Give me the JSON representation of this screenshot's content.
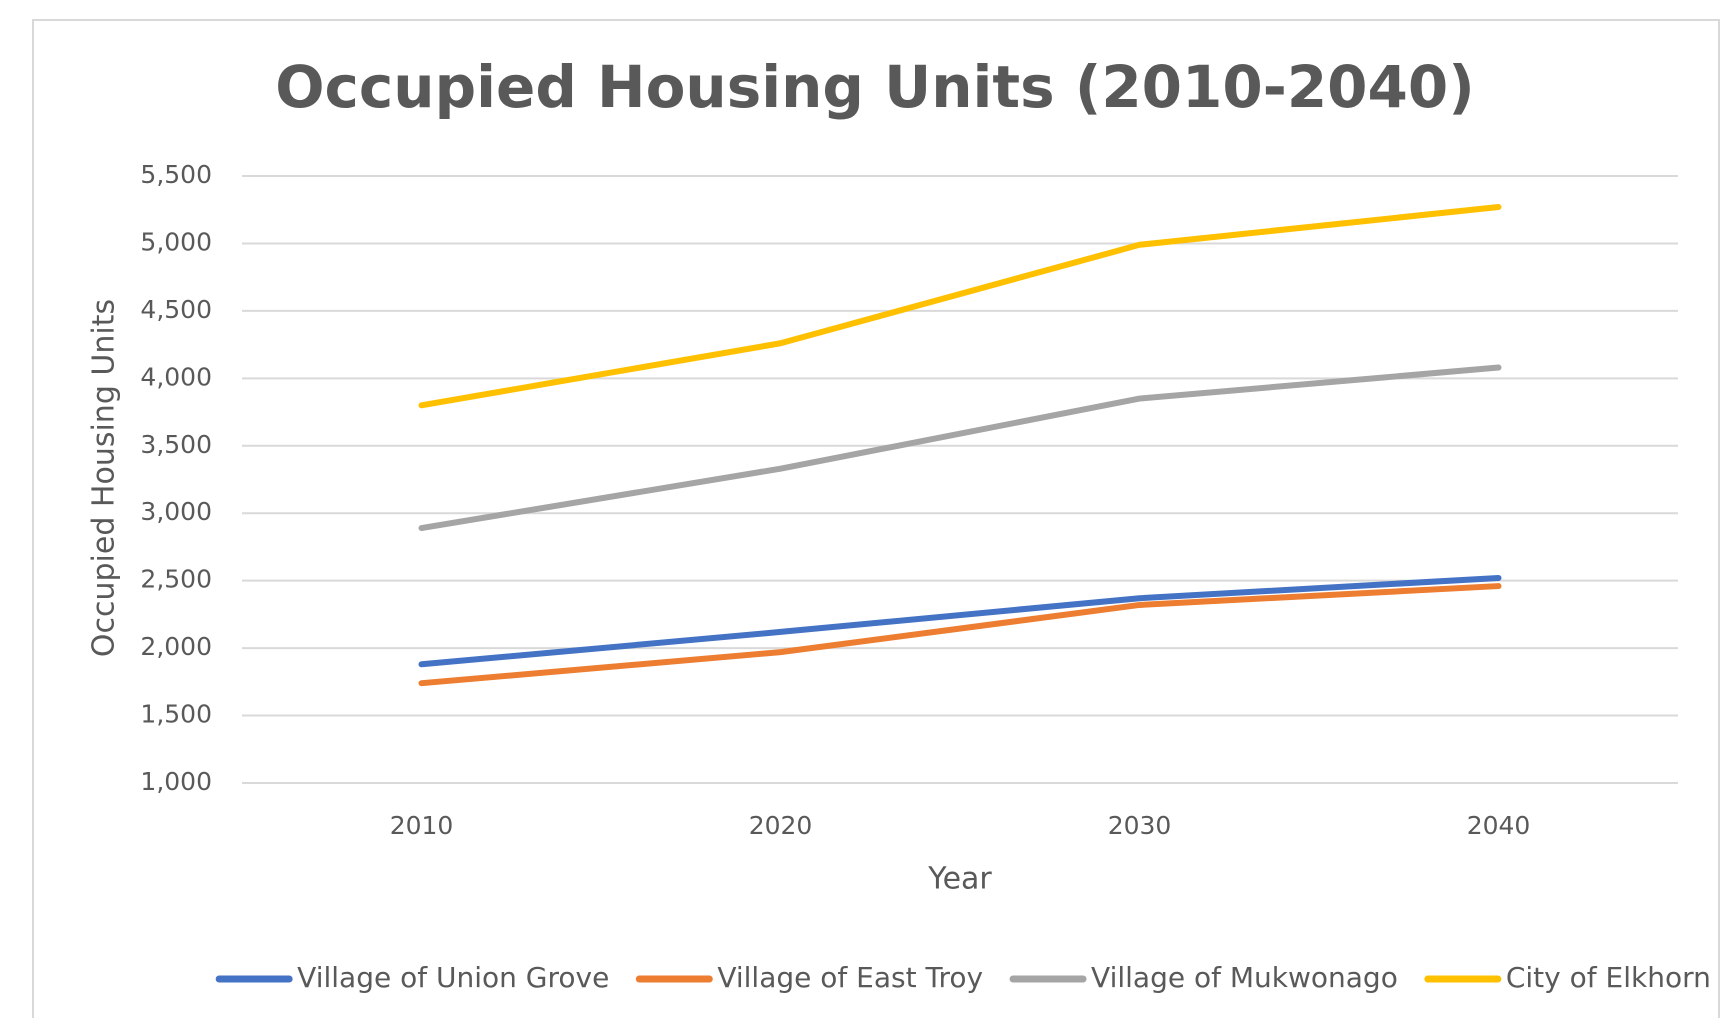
{
  "chart_data": {
    "type": "line",
    "title": "Occupied Housing Units (2010-2040)",
    "x_label": "Year",
    "y_label": "Occupied Housing Units",
    "categories": [
      "2010",
      "2020",
      "2030",
      "2040"
    ],
    "series": [
      {
        "name": "Village of Union Grove",
        "color": "#4472c4",
        "values": [
          1880,
          2120,
          2370,
          2520
        ]
      },
      {
        "name": "Village of East Troy",
        "color": "#ed7d31",
        "values": [
          1740,
          1970,
          2320,
          2460
        ]
      },
      {
        "name": "Village of Mukwonago",
        "color": "#a5a5a5",
        "values": [
          2890,
          3330,
          3850,
          4080
        ]
      },
      {
        "name": "City of Elkhorn",
        "color": "#ffc000",
        "values": [
          3800,
          4260,
          4990,
          5270
        ]
      }
    ],
    "ylim": [
      1000,
      5500
    ],
    "yticks": [
      {
        "value": 1000,
        "label": "1,000"
      },
      {
        "value": 1500,
        "label": "1,500"
      },
      {
        "value": 2000,
        "label": "2,000"
      },
      {
        "value": 2500,
        "label": "2,500"
      },
      {
        "value": 3000,
        "label": "3,000"
      },
      {
        "value": 3500,
        "label": "3,500"
      },
      {
        "value": 4000,
        "label": "4,000"
      },
      {
        "value": 4500,
        "label": "4,500"
      },
      {
        "value": 5000,
        "label": "5,000"
      },
      {
        "value": 5500,
        "label": "5,500"
      }
    ],
    "grid": true,
    "legend": "bottom"
  }
}
